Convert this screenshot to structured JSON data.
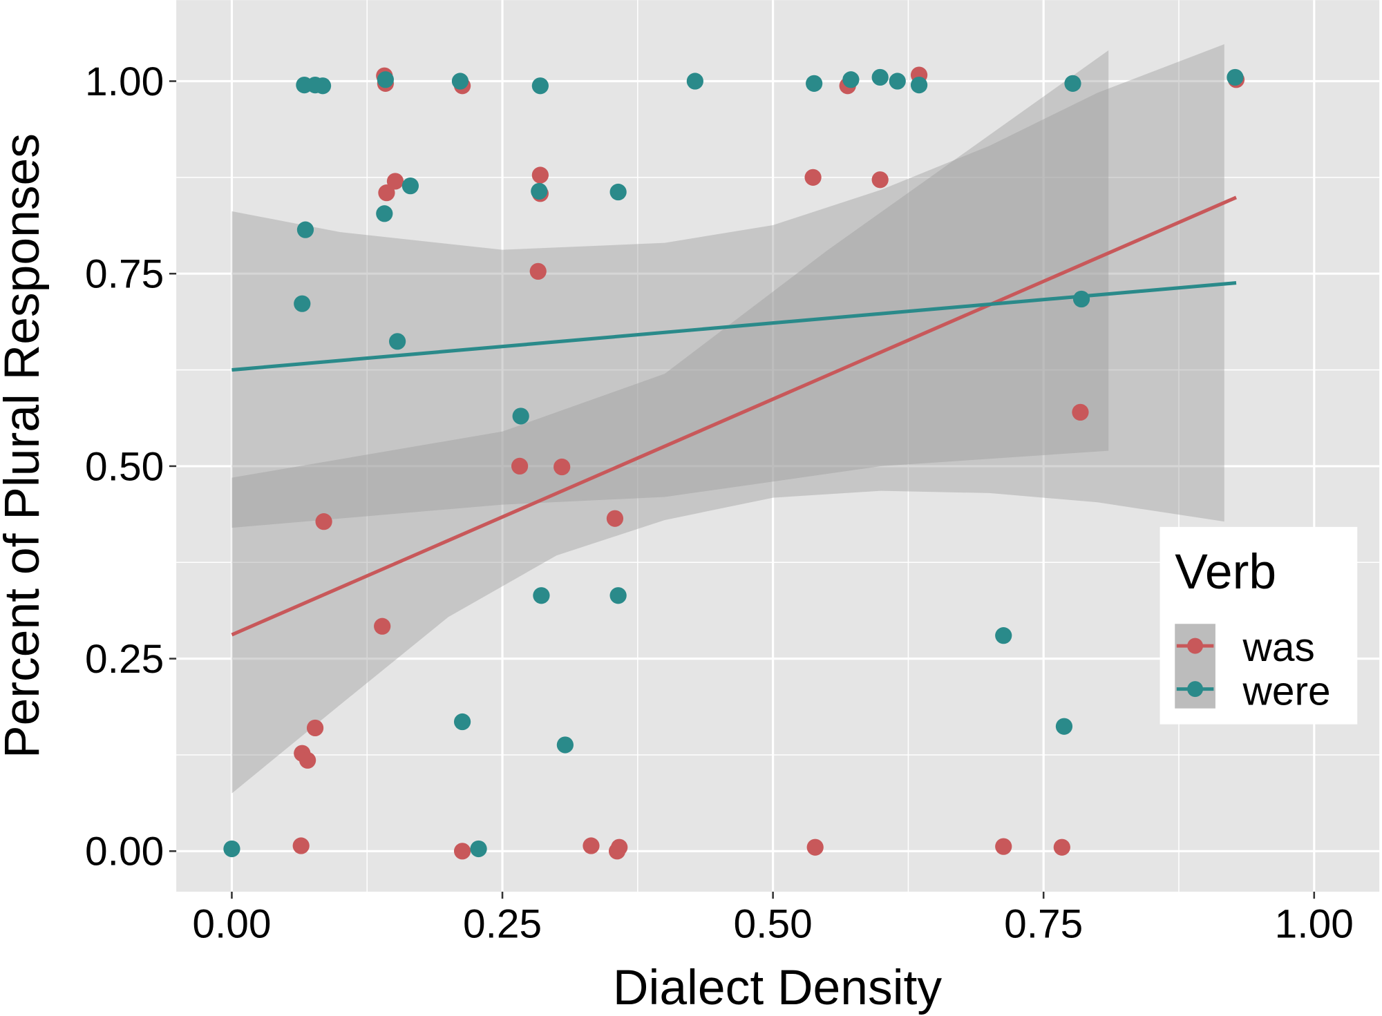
{
  "chart_data": {
    "type": "scatter",
    "xlabel": "Dialect Density",
    "ylabel": "Percent of Plural Responses",
    "xlim": [
      -0.1,
      1.1
    ],
    "ylim": [
      -0.1,
      1.1
    ],
    "x_ticks": [
      "0.00",
      "0.25",
      "0.50",
      "0.75",
      "1.00"
    ],
    "y_ticks": [
      "0.00",
      "0.25",
      "0.50",
      "0.75",
      "1.00"
    ],
    "grid": true,
    "legend": {
      "title": "Verb",
      "position": "right"
    },
    "series": [
      {
        "name": "was",
        "color": "#c8585a",
        "points": [
          [
            0.141,
            1.007
          ],
          [
            0.142,
            0.997
          ],
          [
            0.213,
            0.994
          ],
          [
            0.569,
            0.994
          ],
          [
            0.635,
            1.008
          ],
          [
            0.928,
            1.002
          ],
          [
            0.151,
            0.87
          ],
          [
            0.143,
            0.855
          ],
          [
            0.285,
            0.878
          ],
          [
            0.285,
            0.854
          ],
          [
            0.537,
            0.875
          ],
          [
            0.599,
            0.872
          ],
          [
            0.283,
            0.753
          ],
          [
            0.784,
            0.57
          ],
          [
            0.266,
            0.5
          ],
          [
            0.305,
            0.499
          ],
          [
            0.085,
            0.428
          ],
          [
            0.354,
            0.432
          ],
          [
            0.139,
            0.292
          ],
          [
            0.077,
            0.16
          ],
          [
            0.065,
            0.127
          ],
          [
            0.07,
            0.118
          ],
          [
            0.064,
            0.007
          ],
          [
            0.213,
            0.0
          ],
          [
            0.332,
            0.007
          ],
          [
            0.356,
            0.0
          ],
          [
            0.358,
            0.005
          ],
          [
            0.539,
            0.005
          ],
          [
            0.713,
            0.006
          ],
          [
            0.767,
            0.005
          ]
        ],
        "fit": [
          [
            0,
            0.281
          ],
          [
            0.928,
            0.849
          ]
        ]
      },
      {
        "name": "were",
        "color": "#2a8a8a",
        "points": [
          [
            0.067,
            0.995
          ],
          [
            0.077,
            0.995
          ],
          [
            0.084,
            0.994
          ],
          [
            0.142,
            1.002
          ],
          [
            0.211,
            1.0
          ],
          [
            0.285,
            0.994
          ],
          [
            0.428,
            1.0
          ],
          [
            0.538,
            0.997
          ],
          [
            0.572,
            1.002
          ],
          [
            0.599,
            1.005
          ],
          [
            0.615,
            1.0
          ],
          [
            0.635,
            0.995
          ],
          [
            0.777,
            0.997
          ],
          [
            0.927,
            1.005
          ],
          [
            0.165,
            0.864
          ],
          [
            0.284,
            0.857
          ],
          [
            0.357,
            0.856
          ],
          [
            0.141,
            0.828
          ],
          [
            0.068,
            0.807
          ],
          [
            0.065,
            0.711
          ],
          [
            0.153,
            0.662
          ],
          [
            0.785,
            0.717
          ],
          [
            0.267,
            0.565
          ],
          [
            0.286,
            0.332
          ],
          [
            0.357,
            0.332
          ],
          [
            0.713,
            0.28
          ],
          [
            0.213,
            0.168
          ],
          [
            0.769,
            0.162
          ],
          [
            0.308,
            0.138
          ],
          [
            0.0,
            0.003
          ],
          [
            0.228,
            0.003
          ]
        ],
        "fit": [
          [
            0,
            0.625
          ],
          [
            0.928,
            0.738
          ]
        ]
      }
    ],
    "ribbons": [
      {
        "upper": [
          [
            0,
            0.831
          ],
          [
            0.1,
            0.804
          ],
          [
            0.25,
            0.781
          ],
          [
            0.4,
            0.79
          ],
          [
            0.5,
            0.813
          ],
          [
            0.6,
            0.859
          ],
          [
            0.7,
            0.916
          ],
          [
            0.8,
            0.985
          ],
          [
            0.917,
            1.048
          ]
        ],
        "lower": [
          [
            0,
            0.075
          ],
          [
            0.1,
            0.19
          ],
          [
            0.2,
            0.304
          ],
          [
            0.3,
            0.384
          ],
          [
            0.4,
            0.43
          ],
          [
            0.5,
            0.459
          ],
          [
            0.6,
            0.468
          ],
          [
            0.7,
            0.465
          ],
          [
            0.8,
            0.453
          ],
          [
            0.917,
            0.428
          ]
        ]
      },
      {
        "upper": [
          [
            0,
            0.485
          ],
          [
            0.25,
            0.545
          ],
          [
            0.4,
            0.62
          ],
          [
            0.55,
            0.78
          ],
          [
            0.7,
            0.93
          ],
          [
            0.81,
            1.04
          ]
        ],
        "lower": [
          [
            0,
            0.42
          ],
          [
            0.25,
            0.45
          ],
          [
            0.4,
            0.46
          ],
          [
            0.6,
            0.5
          ],
          [
            0.81,
            0.52
          ]
        ]
      }
    ]
  }
}
